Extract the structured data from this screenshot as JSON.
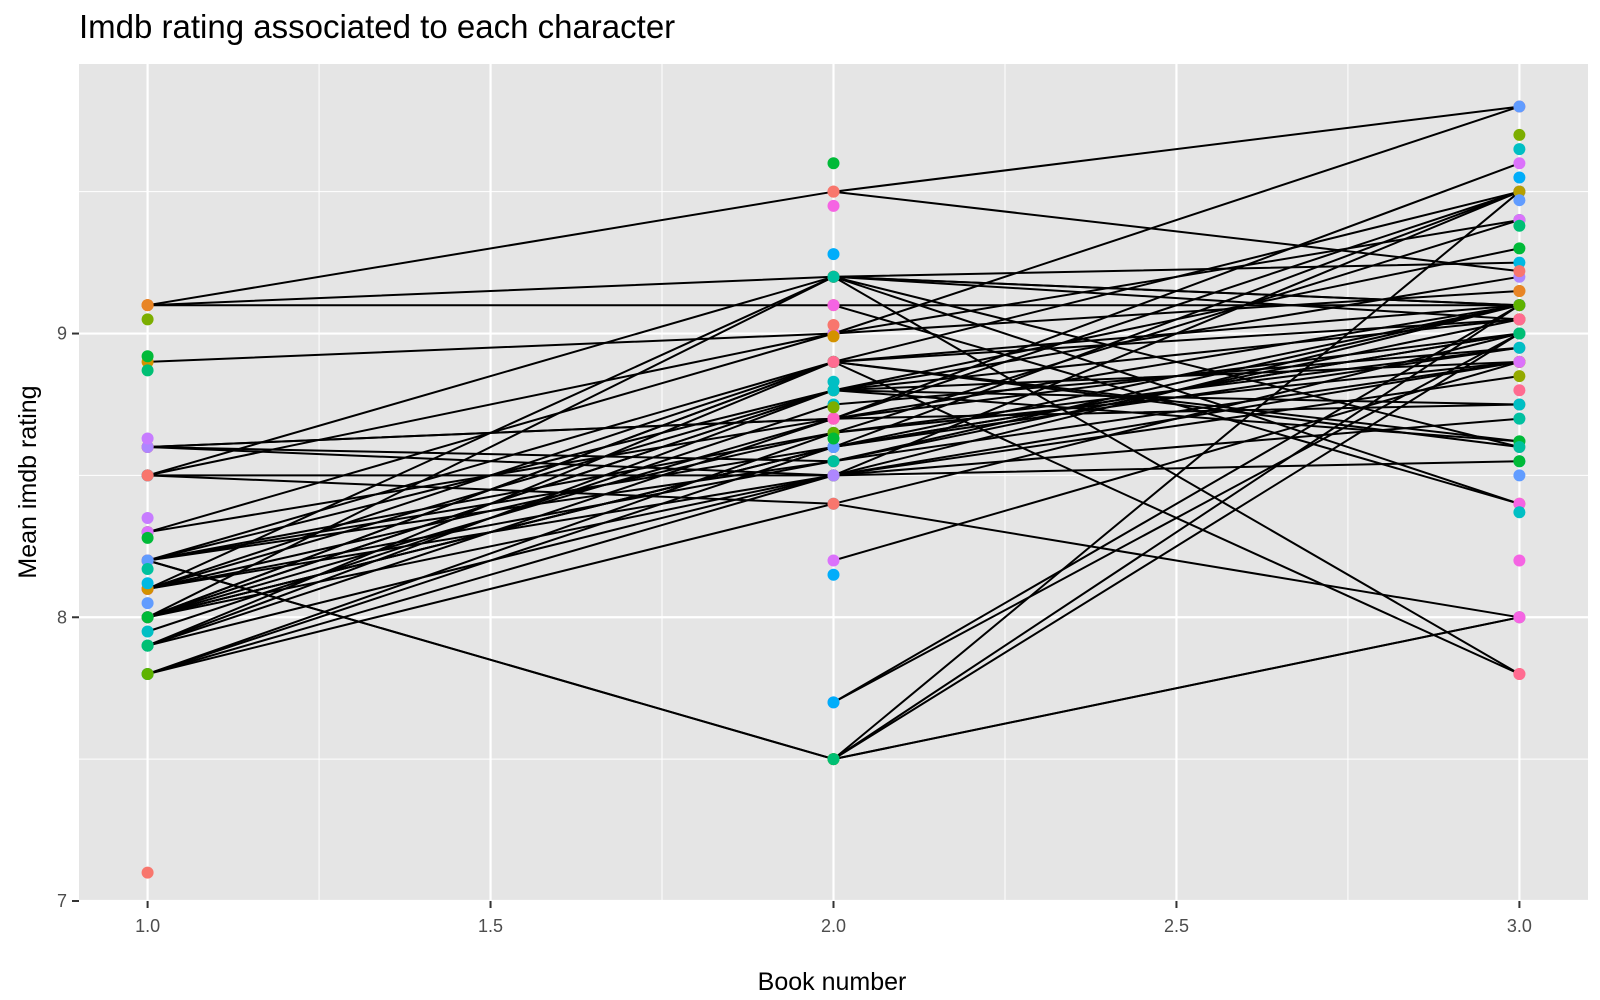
{
  "title": "Imdb rating associated to each character",
  "chart_data": {
    "type": "line",
    "title": "Imdb rating associated to each character",
    "xlabel": "Book number",
    "ylabel": "Mean imdb rating",
    "xlim": [
      0.9,
      3.1
    ],
    "ylim": [
      7.0,
      9.95
    ],
    "x_ticks": [
      1.0,
      1.5,
      2.0,
      2.5,
      3.0
    ],
    "x_tick_labels": [
      "1.0",
      "1.5",
      "2.0",
      "2.5",
      "3.0"
    ],
    "y_ticks": [
      7,
      8,
      9
    ],
    "y_tick_labels": [
      "7",
      "8",
      "9"
    ],
    "grid": true,
    "panel_background": "#e5e5e5",
    "grid_color": "#ffffff",
    "line_color": "#000000",
    "legend": "none",
    "series": [
      {
        "color": "#F8766D",
        "points": [
          [
            1,
            9.1
          ],
          [
            2,
            9.5
          ],
          [
            3,
            9.8
          ]
        ]
      },
      {
        "color": "#E88526",
        "points": [
          [
            1,
            9.1
          ],
          [
            2,
            9.1
          ],
          [
            3,
            9.1
          ]
        ]
      },
      {
        "color": "#D39200",
        "points": [
          [
            1,
            8.9
          ],
          [
            2,
            9.0
          ],
          [
            3,
            9.15
          ]
        ]
      },
      {
        "color": "#B79F00",
        "points": [
          [
            1,
            8.6
          ],
          [
            2,
            8.55
          ],
          [
            3,
            9.1
          ]
        ]
      },
      {
        "color": "#93AA00",
        "points": [
          [
            1,
            8.5
          ],
          [
            2,
            9.2
          ],
          [
            3,
            9.05
          ]
        ]
      },
      {
        "color": "#5EB300",
        "points": [
          [
            1,
            8.3
          ],
          [
            2,
            8.7
          ],
          [
            3,
            9.0
          ]
        ]
      },
      {
        "color": "#00BA38",
        "points": [
          [
            1,
            8.2
          ],
          [
            2,
            8.9
          ],
          [
            3,
            9.5
          ]
        ]
      },
      {
        "color": "#00BF74",
        "points": [
          [
            1,
            8.1
          ],
          [
            2,
            8.65
          ],
          [
            3,
            9.4
          ]
        ]
      },
      {
        "color": "#00C19F",
        "points": [
          [
            1,
            8.0
          ],
          [
            2,
            8.6
          ],
          [
            3,
            9.5
          ]
        ]
      },
      {
        "color": "#00BFC4",
        "points": [
          [
            1,
            7.9
          ],
          [
            2,
            8.5
          ],
          [
            3,
            9.5
          ]
        ]
      },
      {
        "color": "#00B9E3",
        "points": [
          [
            1,
            7.8
          ],
          [
            2,
            8.4
          ],
          [
            3,
            9.0
          ]
        ]
      },
      {
        "color": "#00ADFA",
        "points": [
          [
            1,
            8.2
          ],
          [
            2,
            7.5
          ],
          [
            3,
            8.0
          ]
        ]
      },
      {
        "color": "#619CFF",
        "points": [
          [
            1,
            8.5
          ],
          [
            2,
            9.0
          ],
          [
            3,
            9.8
          ]
        ]
      },
      {
        "color": "#AE87FF",
        "points": [
          [
            1,
            8.0
          ],
          [
            2,
            8.8
          ],
          [
            3,
            9.2
          ]
        ]
      },
      {
        "color": "#DB72FB",
        "points": [
          [
            1,
            7.9
          ],
          [
            2,
            8.7
          ],
          [
            3,
            9.6
          ]
        ]
      },
      {
        "color": "#F564E3",
        "points": [
          [
            1,
            8.6
          ],
          [
            2,
            8.7
          ],
          [
            3,
            9.5
          ]
        ]
      },
      {
        "color": "#FF61C3",
        "points": [
          [
            1,
            8.1
          ],
          [
            2,
            9.2
          ],
          [
            3,
            9.1
          ]
        ]
      },
      {
        "color": "#FF6C91",
        "points": [
          [
            1,
            8.0
          ],
          [
            2,
            8.8
          ],
          [
            3,
            9.05
          ]
        ]
      },
      {
        "color": "#F8766D",
        "points": [
          [
            1,
            7.8
          ],
          [
            2,
            8.5
          ],
          [
            3,
            9.1
          ]
        ]
      },
      {
        "color": "#00BA38",
        "points": [
          [
            1,
            8.2
          ],
          [
            2,
            8.8
          ],
          [
            3,
            9.3
          ]
        ]
      },
      {
        "color": "#619CFF",
        "points": [
          [
            1,
            8.0
          ],
          [
            2,
            8.6
          ],
          [
            3,
            9.0
          ]
        ]
      },
      {
        "color": "#F564E3",
        "points": [
          [
            1,
            8.1
          ],
          [
            2,
            8.5
          ],
          [
            3,
            8.9
          ]
        ]
      },
      {
        "color": "#00BFC4",
        "points": [
          [
            1,
            7.9
          ],
          [
            2,
            8.9
          ],
          [
            3,
            9.1
          ]
        ]
      },
      {
        "color": "#B79F00",
        "points": [
          [
            1,
            8.0
          ],
          [
            2,
            8.9
          ],
          [
            3,
            9.05
          ]
        ]
      },
      {
        "color": "#FF61C3",
        "points": [
          [
            1,
            8.2
          ],
          [
            2,
            8.65
          ],
          [
            3,
            8.95
          ]
        ]
      },
      {
        "color": "#00C19F",
        "points": [
          [
            1,
            7.8
          ],
          [
            2,
            8.6
          ],
          [
            3,
            9.0
          ]
        ]
      },
      {
        "color": "#F8766D",
        "points": [
          [
            1,
            8.6
          ],
          [
            2,
            8.7
          ],
          [
            3,
            8.75
          ]
        ]
      },
      {
        "color": "#00ADFA",
        "points": [
          [
            1,
            8.5
          ],
          [
            2,
            8.5
          ],
          [
            3,
            8.55
          ]
        ]
      },
      {
        "color": "#AE87FF",
        "points": [
          [
            1,
            8.0
          ],
          [
            2,
            8.6
          ],
          [
            3,
            8.95
          ]
        ]
      },
      {
        "color": "#FF6C91",
        "points": [
          [
            1,
            8.1
          ],
          [
            2,
            8.55
          ],
          [
            3,
            8.9
          ]
        ]
      },
      {
        "color": "#F8766D",
        "points": [
          [
            1,
            8.5
          ],
          [
            2,
            8.4
          ],
          [
            3,
            8.0
          ]
        ]
      },
      {
        "color": "#FF61C3",
        "points": [
          [
            1,
            8.1
          ],
          [
            2,
            8.9
          ],
          [
            3,
            8.6
          ]
        ]
      },
      {
        "color": "#00BF74",
        "points": [
          [
            1,
            7.9
          ],
          [
            2,
            8.8
          ],
          [
            3,
            8.62
          ]
        ]
      },
      {
        "color": "#E88526",
        "points": [
          [
            1,
            9.1
          ],
          [
            2,
            9.2
          ],
          [
            3,
            9.1
          ]
        ]
      },
      {
        "color": "#F564E3",
        "points": [
          [
            1,
            8.2
          ],
          [
            2,
            7.5
          ],
          [
            3,
            8.0
          ]
        ]
      },
      {
        "color": "#5EB300",
        "points": [
          [
            1,
            7.8
          ],
          [
            2,
            8.65
          ],
          [
            3,
            8.9
          ]
        ]
      },
      {
        "color": "#00B9E3",
        "points": [
          [
            1,
            8.0
          ],
          [
            2,
            9.2
          ],
          [
            3,
            9.25
          ]
        ]
      },
      {
        "color": "#DB72FB",
        "points": [
          [
            1,
            8.3
          ],
          [
            2,
            9.0
          ],
          [
            3,
            9.4
          ]
        ]
      },
      {
        "color": "#FF6C91",
        "points": [
          [
            1,
            8.2
          ],
          [
            2,
            8.55
          ],
          [
            3,
            9.05
          ]
        ]
      },
      {
        "color": "#00BFC4",
        "points": [
          [
            1,
            7.95
          ],
          [
            2,
            8.75
          ],
          [
            3,
            8.95
          ]
        ]
      },
      {
        "color": "#D39200",
        "points": [
          [
            1,
            8.1
          ],
          [
            2,
            8.8
          ],
          [
            3,
            8.9
          ]
        ]
      },
      {
        "color": "#93AA00",
        "points": [
          [
            1,
            8.0
          ],
          [
            2,
            8.5
          ],
          [
            3,
            8.85
          ]
        ]
      },
      {
        "color": "#AE87FF",
        "points": [
          [
            1,
            8.6
          ],
          [
            2,
            8.5
          ],
          [
            3,
            8.7
          ]
        ]
      },
      {
        "color": "#FF61C3",
        "points": [
          [
            1,
            8.0
          ],
          [
            2,
            8.7
          ],
          [
            3,
            9.1
          ]
        ]
      },
      {
        "color": "#00BA38",
        "points": [
          [
            1,
            8.0
          ],
          [
            2,
            8.9
          ],
          [
            3,
            8.62
          ]
        ]
      },
      {
        "color": "#619CFF",
        "points": [
          [
            1,
            8.2
          ],
          [
            2,
            8.6
          ],
          [
            3,
            9.1
          ]
        ]
      },
      {
        "color": "#F8766D",
        "points": [
          [
            2,
            9.2
          ],
          [
            3,
            7.8
          ]
        ]
      },
      {
        "color": "#E88526",
        "points": [
          [
            2,
            9.2
          ],
          [
            3,
            8.4
          ]
        ]
      },
      {
        "color": "#00C19F",
        "points": [
          [
            2,
            9.2
          ],
          [
            3,
            8.6
          ]
        ]
      },
      {
        "color": "#F564E3",
        "points": [
          [
            2,
            9.1
          ],
          [
            3,
            8.4
          ]
        ]
      },
      {
        "color": "#FF6C91",
        "points": [
          [
            2,
            8.9
          ],
          [
            3,
            7.8
          ]
        ]
      },
      {
        "color": "#AE87FF",
        "points": [
          [
            2,
            7.7
          ],
          [
            3,
            9.0
          ]
        ]
      },
      {
        "color": "#00ADFA",
        "points": [
          [
            2,
            7.7
          ],
          [
            3,
            9.1
          ]
        ]
      },
      {
        "color": "#B79F00",
        "points": [
          [
            2,
            7.5
          ],
          [
            3,
            9.5
          ]
        ]
      },
      {
        "color": "#5EB300",
        "points": [
          [
            2,
            7.5
          ],
          [
            3,
            9.1
          ]
        ]
      },
      {
        "color": "#00BF74",
        "points": [
          [
            2,
            7.5
          ],
          [
            3,
            9.0
          ]
        ]
      },
      {
        "color": "#DB72FB",
        "points": [
          [
            2,
            8.2
          ],
          [
            3,
            8.9
          ]
        ]
      },
      {
        "color": "#00BFC4",
        "points": [
          [
            2,
            8.8
          ],
          [
            3,
            8.75
          ]
        ]
      },
      {
        "color": "#F8766D",
        "points": [
          [
            2,
            9.5
          ],
          [
            3,
            9.22
          ]
        ]
      }
    ],
    "extra_points": [
      {
        "x": 1,
        "y": 7.1,
        "color": "#F8766D"
      },
      {
        "x": 1,
        "y": 9.05,
        "color": "#7CAE00"
      },
      {
        "x": 1,
        "y": 8.92,
        "color": "#00BA38"
      },
      {
        "x": 1,
        "y": 8.87,
        "color": "#00BF74"
      },
      {
        "x": 1,
        "y": 8.63,
        "color": "#C77CFF"
      },
      {
        "x": 1,
        "y": 8.35,
        "color": "#C77CFF"
      },
      {
        "x": 1,
        "y": 8.28,
        "color": "#00BA38"
      },
      {
        "x": 1,
        "y": 8.17,
        "color": "#00C19F"
      },
      {
        "x": 1,
        "y": 8.12,
        "color": "#00B9E3"
      },
      {
        "x": 1,
        "y": 8.05,
        "color": "#619CFF"
      },
      {
        "x": 2,
        "y": 9.6,
        "color": "#00BA38"
      },
      {
        "x": 2,
        "y": 9.45,
        "color": "#F564E3"
      },
      {
        "x": 2,
        "y": 9.28,
        "color": "#00ADFA"
      },
      {
        "x": 2,
        "y": 9.03,
        "color": "#F8766D"
      },
      {
        "x": 2,
        "y": 8.99,
        "color": "#D39200"
      },
      {
        "x": 2,
        "y": 8.83,
        "color": "#00BFC4"
      },
      {
        "x": 2,
        "y": 8.74,
        "color": "#7CAE00"
      },
      {
        "x": 2,
        "y": 8.63,
        "color": "#00BA38"
      },
      {
        "x": 2,
        "y": 8.55,
        "color": "#00C19F"
      },
      {
        "x": 2,
        "y": 8.15,
        "color": "#00ADFA"
      },
      {
        "x": 3,
        "y": 9.7,
        "color": "#7CAE00"
      },
      {
        "x": 3,
        "y": 9.65,
        "color": "#00BFC4"
      },
      {
        "x": 3,
        "y": 9.55,
        "color": "#00ADFA"
      },
      {
        "x": 3,
        "y": 9.47,
        "color": "#619CFF"
      },
      {
        "x": 3,
        "y": 9.38,
        "color": "#00BF74"
      },
      {
        "x": 3,
        "y": 9.15,
        "color": "#E88526"
      },
      {
        "x": 3,
        "y": 8.8,
        "color": "#FF6C91"
      },
      {
        "x": 3,
        "y": 8.7,
        "color": "#00C19F"
      },
      {
        "x": 3,
        "y": 8.55,
        "color": "#00BA38"
      },
      {
        "x": 3,
        "y": 8.5,
        "color": "#619CFF"
      },
      {
        "x": 3,
        "y": 8.37,
        "color": "#00BFC4"
      },
      {
        "x": 3,
        "y": 8.2,
        "color": "#F564E3"
      }
    ]
  }
}
